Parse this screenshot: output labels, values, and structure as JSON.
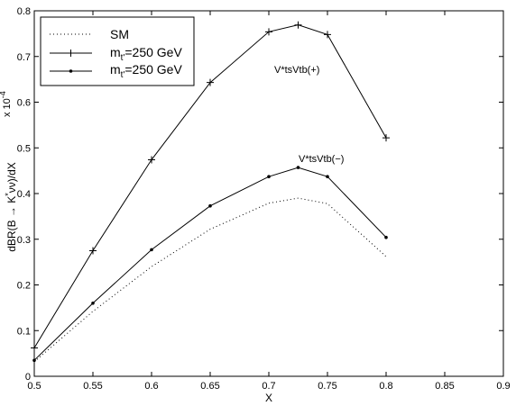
{
  "chart_data": {
    "type": "line",
    "xlabel": "X",
    "ylabel_text": "dBR(B → K",
    "ylabel_sup": "*",
    "ylabel_rest": "νν)/dX",
    "scale_prefix": "x 10",
    "scale_exp": "-4",
    "xlim": [
      0.5,
      0.9
    ],
    "ylim": [
      0,
      0.8
    ],
    "x_ticks": [
      0.5,
      0.55,
      0.6,
      0.65,
      0.7,
      0.75,
      0.8,
      0.85,
      0.9
    ],
    "x_tick_labels": [
      "0.5",
      "0.55",
      "0.6",
      "0.65",
      "0.7",
      "0.75",
      "0.8",
      "0.85",
      "0.9"
    ],
    "y_ticks": [
      0,
      0.1,
      0.2,
      0.3,
      0.4,
      0.5,
      0.6,
      0.7,
      0.8
    ],
    "y_tick_labels": [
      "0",
      "0.1",
      "0.2",
      "0.3",
      "0.4",
      "0.5",
      "0.6",
      "0.7",
      "0.8"
    ],
    "grid": false,
    "legend_position": "top-left",
    "series": [
      {
        "name": "SM",
        "style": "dotted",
        "marker": "none",
        "x": [
          0.5,
          0.55,
          0.6,
          0.65,
          0.7,
          0.725,
          0.75,
          0.8
        ],
        "y": [
          0.032,
          0.142,
          0.24,
          0.322,
          0.379,
          0.39,
          0.378,
          0.262
        ]
      },
      {
        "name_base": "m",
        "name_sub": "t'",
        "name_rest": "=250 GeV",
        "style": "solid",
        "marker": "plus",
        "x": [
          0.5,
          0.55,
          0.6,
          0.65,
          0.7,
          0.725,
          0.75,
          0.8
        ],
        "y": [
          0.062,
          0.275,
          0.474,
          0.643,
          0.754,
          0.769,
          0.748,
          0.522
        ]
      },
      {
        "name_base": "m",
        "name_sub": "t'",
        "name_rest": "=250 GeV",
        "style": "solid",
        "marker": "dot",
        "x": [
          0.5,
          0.55,
          0.6,
          0.65,
          0.7,
          0.725,
          0.75,
          0.8
        ],
        "y": [
          0.035,
          0.16,
          0.277,
          0.373,
          0.437,
          0.457,
          0.437,
          0.304
        ]
      }
    ],
    "annotations": [
      {
        "text": "V*tsVtb(+)",
        "x": 0.7,
        "y": 0.68
      },
      {
        "text": "V*tsVtb(−)",
        "x": 0.71,
        "y": 0.475
      }
    ]
  }
}
